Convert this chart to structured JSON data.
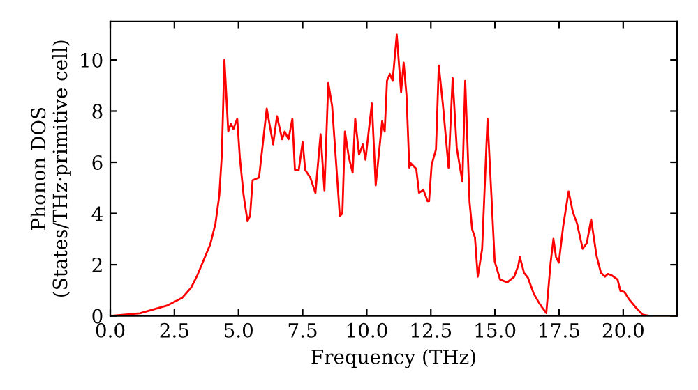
{
  "chart_data": {
    "type": "line",
    "xlabel": "Frequency (THz)",
    "ylabel": "Phonon DOS\n(States/THz·primitive cell)",
    "xlim": [
      0,
      22.1
    ],
    "ylim": [
      0,
      11.5
    ],
    "xticks": [
      {
        "value": 0,
        "label": "0.0"
      },
      {
        "value": 2.5,
        "label": "2.5"
      },
      {
        "value": 5,
        "label": "5.0"
      },
      {
        "value": 7.5,
        "label": "7.5"
      },
      {
        "value": 10,
        "label": "10.0"
      },
      {
        "value": 12.5,
        "label": "12.5"
      },
      {
        "value": 15,
        "label": "15.0"
      },
      {
        "value": 17.5,
        "label": "17.5"
      },
      {
        "value": 20,
        "label": "20.0"
      }
    ],
    "yticks": [
      0,
      2,
      4,
      6,
      8,
      10
    ],
    "grid": false,
    "legend": false,
    "marker": "none",
    "line_style": "solid",
    "series": [
      {
        "color": "#ff0000",
        "x": [
          0,
          1.15,
          2.2,
          2.8,
          3.15,
          3.4,
          3.65,
          3.9,
          4.1,
          4.25,
          4.35,
          4.45,
          4.6,
          4.7,
          4.8,
          4.95,
          5.05,
          5.2,
          5.35,
          5.45,
          5.55,
          5.8,
          6.1,
          6.35,
          6.5,
          6.7,
          6.8,
          6.95,
          7.1,
          7.2,
          7.35,
          7.5,
          7.6,
          7.8,
          8.0,
          8.2,
          8.35,
          8.5,
          8.65,
          8.95,
          9.05,
          9.15,
          9.3,
          9.45,
          9.55,
          9.7,
          9.85,
          9.95,
          10.2,
          10.35,
          10.6,
          10.7,
          10.79,
          10.9,
          11.01,
          11.17,
          11.34,
          11.44,
          11.55,
          11.66,
          11.72,
          11.93,
          12.04,
          12.21,
          12.37,
          12.43,
          12.53,
          12.7,
          12.81,
          12.97,
          13.19,
          13.35,
          13.51,
          13.73,
          13.84,
          14.01,
          14.11,
          14.22,
          14.33,
          14.5,
          14.71,
          14.99,
          15.2,
          15.48,
          15.75,
          15.91,
          15.97,
          16.13,
          16.29,
          16.51,
          16.73,
          16.84,
          17.0,
          17.17,
          17.28,
          17.38,
          17.49,
          17.66,
          17.82,
          17.87,
          18.04,
          18.2,
          18.42,
          18.58,
          18.75,
          18.96,
          19.13,
          19.29,
          19.4,
          19.56,
          19.78,
          19.89,
          20.05,
          20.22,
          20.49,
          20.76,
          21.04,
          22.1
        ],
        "values": [
          0,
          0.1,
          0.4,
          0.7,
          1.1,
          1.6,
          2.2,
          2.8,
          3.6,
          4.7,
          6.3,
          10.0,
          7.2,
          7.5,
          7.3,
          7.7,
          6.2,
          4.7,
          3.7,
          3.9,
          5.3,
          5.4,
          8.1,
          6.7,
          7.8,
          6.9,
          7.2,
          6.9,
          7.7,
          5.7,
          5.7,
          6.8,
          5.7,
          5.4,
          4.8,
          7.1,
          4.9,
          9.1,
          8.2,
          3.9,
          4.0,
          7.2,
          6.2,
          5.6,
          7.7,
          6.3,
          6.7,
          6.1,
          8.3,
          5.1,
          7.6,
          7.2,
          9.18,
          9.45,
          9.18,
          10.98,
          8.74,
          9.89,
          8.63,
          5.79,
          5.96,
          5.74,
          4.81,
          4.92,
          4.48,
          4.48,
          5.9,
          6.5,
          9.78,
          8.25,
          5.79,
          9.29,
          6.56,
          5.25,
          9.18,
          4.43,
          3.39,
          3.06,
          1.53,
          2.62,
          7.7,
          2.13,
          1.42,
          1.31,
          1.53,
          1.97,
          2.3,
          1.69,
          1.48,
          0.87,
          0.49,
          0.33,
          0.11,
          2.08,
          3.01,
          2.3,
          2.08,
          3.5,
          4.54,
          4.86,
          4.04,
          3.61,
          2.62,
          2.84,
          3.77,
          2.35,
          1.69,
          1.53,
          1.64,
          1.58,
          1.42,
          0.98,
          0.93,
          0.66,
          0.33,
          0.05,
          0,
          0
        ]
      }
    ]
  }
}
